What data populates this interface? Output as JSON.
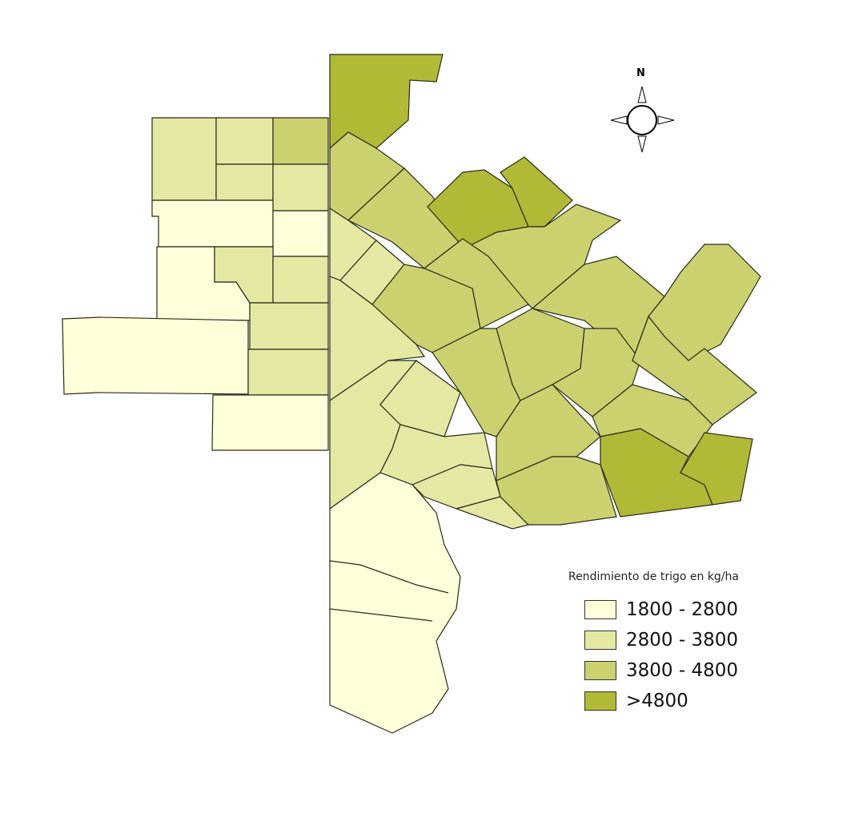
{
  "legend": {
    "title": "Rendimiento de trigo en kg/ha",
    "classes": [
      {
        "label": "1800 - 2800",
        "color": "#FFFFD9"
      },
      {
        "label": "2800 - 3800",
        "color": "#E4E8A2"
      },
      {
        "label": "3800 - 4800",
        "color": "#CBD16F"
      },
      {
        "label": ">4800",
        "color": "#B0BA36"
      }
    ]
  },
  "north_arrow": {
    "label": "N",
    "icon": "compass-rose-icon"
  }
}
